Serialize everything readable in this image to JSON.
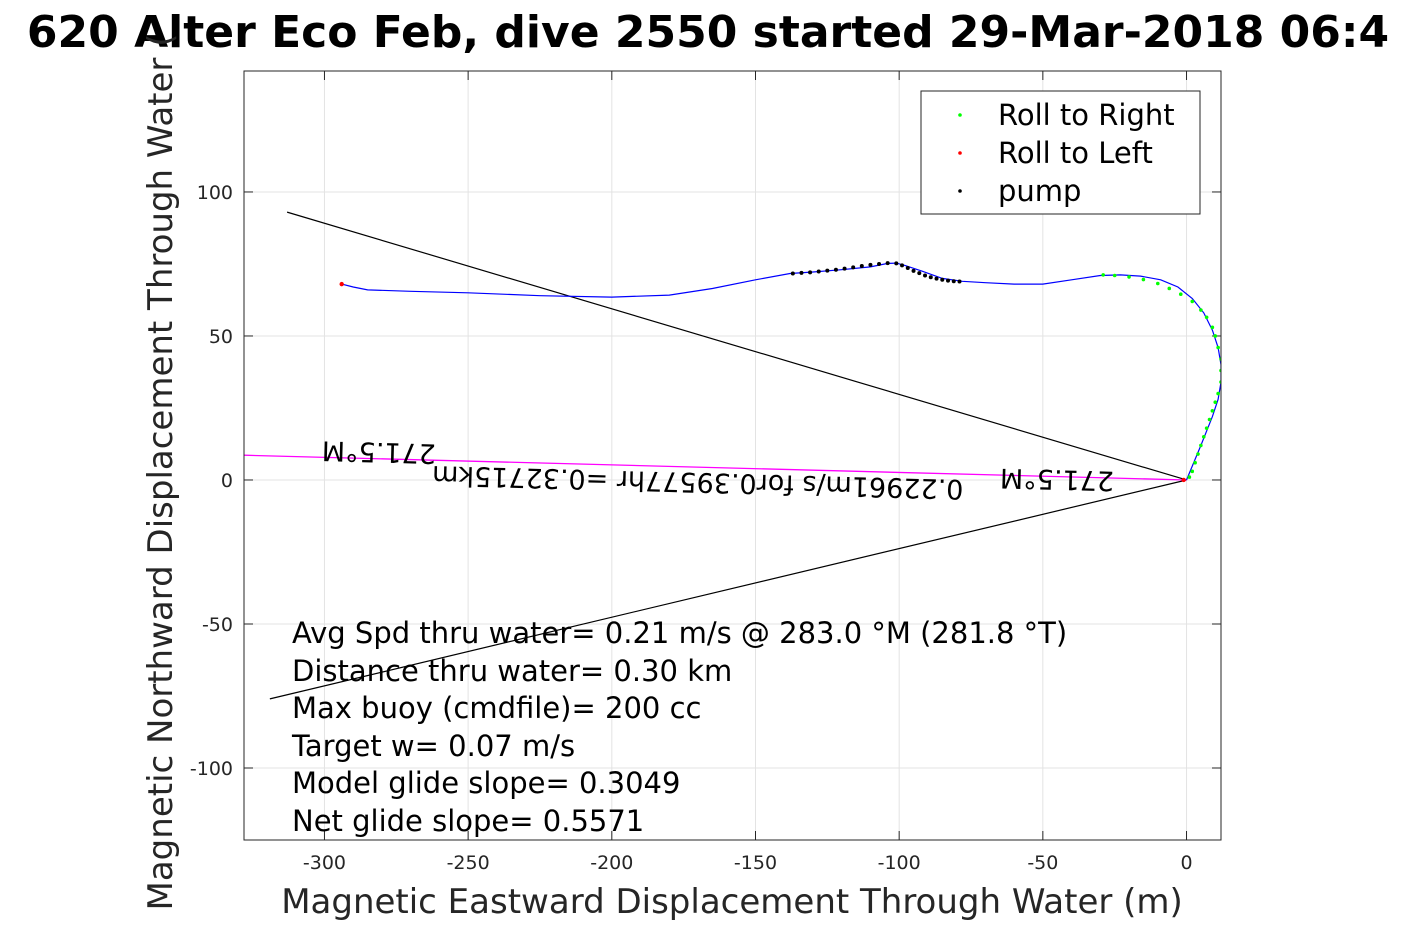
{
  "chart_data": {
    "type": "scatter",
    "title": "620 Alter Eco Feb, dive 2550 started 29-Mar-2018 06:4",
    "xlabel": "Magnetic Eastward Displacement Through Water (m)",
    "ylabel": "Magnetic Northward Displacement Through Water (",
    "xlim": [
      -328,
      12
    ],
    "ylim": [
      -125,
      142
    ],
    "xticks": [
      -300,
      -250,
      -200,
      -150,
      -100,
      -50,
      0
    ],
    "yticks": [
      -100,
      -50,
      0,
      50,
      100
    ],
    "grid": true,
    "legend_position": "top-right",
    "colors": {
      "track": "#0000ff",
      "roll_right": "#00ff00",
      "roll_left": "#ff0000",
      "pump": "#000000",
      "current": "#ff00ff",
      "guide": "#000000"
    },
    "legend": [
      {
        "label": "Roll to Right",
        "color": "#00ff00"
      },
      {
        "label": "Roll to Left",
        "color": "#ff0000"
      },
      {
        "label": "pump",
        "color": "#000000"
      }
    ],
    "track": {
      "x": [
        0,
        5,
        9,
        11,
        12,
        12,
        11,
        9,
        6,
        2,
        -3,
        -9,
        -16,
        -23,
        -30,
        -40,
        -50,
        -60,
        -70,
        -78,
        -85,
        -92,
        -98,
        -101,
        -104,
        -110,
        -120,
        -130,
        -138,
        -150,
        -165,
        -180,
        -200,
        -225,
        -250,
        -270,
        -285,
        -290,
        -294
      ],
      "y": [
        0,
        12,
        22,
        28,
        34,
        40,
        46,
        52,
        58,
        63,
        67,
        69.5,
        70.8,
        71.2,
        71,
        69.5,
        68,
        68,
        68.5,
        69,
        70,
        72.5,
        74.5,
        75.3,
        75.2,
        74,
        73,
        72.2,
        71.7,
        69.5,
        66.5,
        64.2,
        63.5,
        64,
        65,
        65.5,
        66,
        67,
        68
      ]
    },
    "roll_right_points": {
      "x": [
        -29,
        -25,
        -20,
        -15,
        -10,
        -6,
        -2,
        2,
        5,
        7,
        9,
        10,
        11,
        12,
        12,
        12,
        11,
        10,
        9,
        8,
        7,
        6,
        5,
        4,
        3,
        2,
        1
      ],
      "y": [
        71.2,
        71,
        70.5,
        69.6,
        68.2,
        66.5,
        64.5,
        62,
        59,
        56.5,
        53,
        50,
        46,
        42,
        38,
        34,
        30,
        27,
        24,
        21,
        18,
        15,
        12,
        9,
        6,
        3,
        1
      ]
    },
    "roll_left_points": {
      "x": [
        -294,
        -1
      ],
      "y": [
        68,
        0
      ]
    },
    "pump_points": {
      "x": [
        -137,
        -134,
        -131,
        -128,
        -125,
        -122,
        -119,
        -116,
        -113,
        -110,
        -107,
        -104,
        -101,
        -99,
        -97,
        -95,
        -93,
        -91,
        -89,
        -87,
        -85,
        -83,
        -81,
        -79
      ],
      "y": [
        71.7,
        71.9,
        72.1,
        72.4,
        72.7,
        73,
        73.4,
        73.8,
        74.3,
        74.7,
        75,
        75.3,
        75.2,
        74.5,
        73.6,
        72.6,
        71.8,
        71,
        70.4,
        69.9,
        69.5,
        69.2,
        69,
        68.9
      ]
    },
    "guide_lines": [
      {
        "x": [
          0,
          -313
        ],
        "y": [
          0,
          93
        ]
      },
      {
        "x": [
          0,
          -319
        ],
        "y": [
          0,
          -76
        ]
      }
    ],
    "current_line": {
      "x": [
        0,
        -328
      ],
      "y": [
        0,
        8.6
      ]
    },
    "rotated_labels": {
      "heading_left": "271.5°M",
      "heading_right": "271.5°M",
      "current_text": "0.22961m/s for0.39577hr =0.32715km"
    },
    "annotations": [
      "Avg Spd thru water=  0.21 m/s @ 283.0 °M (281.8 °T)",
      "Distance thru water=  0.30 km",
      "Max buoy (cmdfile)= 200 cc",
      "Target w= 0.07 m/s",
      "Model glide slope= 0.3049",
      "Net glide slope= 0.5571"
    ]
  }
}
